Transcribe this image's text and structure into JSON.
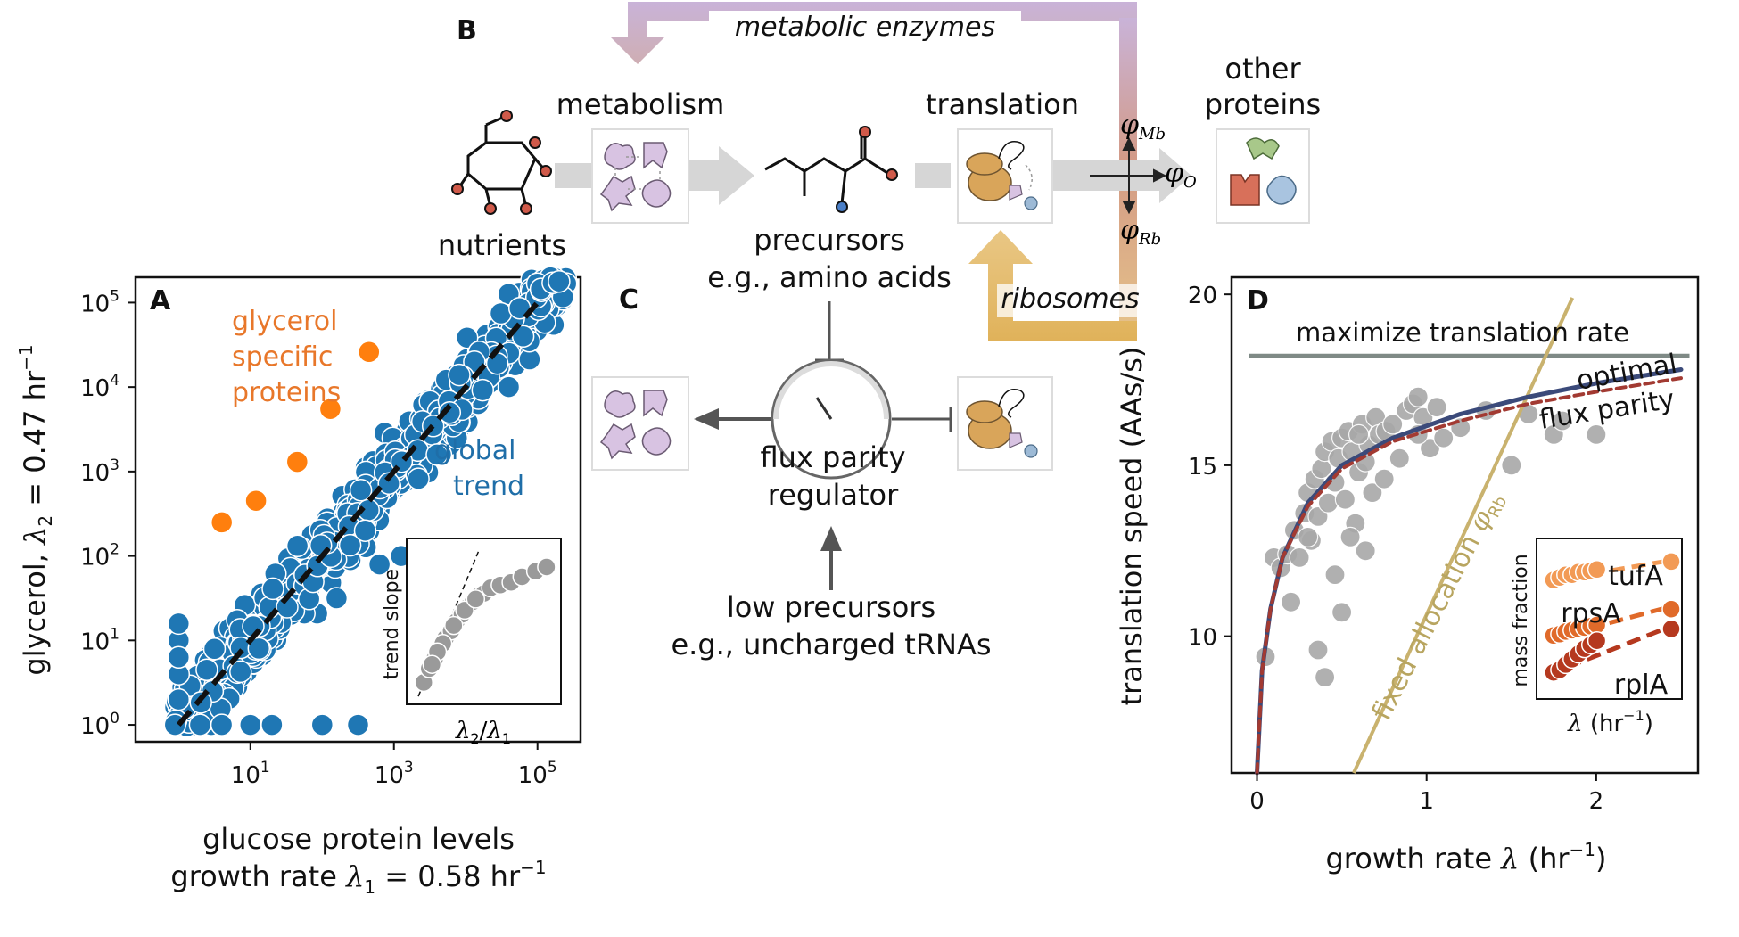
{
  "panels": {
    "A": "A",
    "B": "B",
    "C": "C",
    "D": "D"
  },
  "colors": {
    "global": "#1f77b4",
    "specific": "#ff7f0e",
    "grey_points": "#999999",
    "metab_arrow": "#c9b3d8",
    "ribo_arrow": "#e0b25a",
    "flux_gray": "#bdbdbd",
    "optimal": "#3b4a7a",
    "flux_parity": "#a23a32",
    "fixed": "#c9b26e",
    "max_rate": "#7f8a86",
    "tufA": "#f29a55",
    "rpsA": "#e06a2a",
    "rplA": "#b5391f"
  },
  "panel_b": {
    "top_arrow_label": "metabolic enzymes",
    "nutrients": "nutrients",
    "metabolism": "metabolism",
    "translation": "translation",
    "other_proteins_1": "other",
    "other_proteins_2": "proteins",
    "precursors_1": "precursors",
    "precursors_2": "e.g., amino acids",
    "phi_mb_sym": "φ",
    "phi_mb_sub": "Mb",
    "phi_o_sym": "φ",
    "phi_o_sub": "O",
    "phi_rb_sym": "φ",
    "phi_rb_sub": "Rb",
    "ribosomes": "ribosomes",
    "icons": [
      "glucose-molecule-icon",
      "enzyme-cluster-icon",
      "amino-acid-molecule-icon",
      "ribosome-icon",
      "other-proteins-icon"
    ]
  },
  "panel_c": {
    "regulator_1": "flux parity",
    "regulator_2": "regulator",
    "low_1": "low precursors",
    "low_2": "e.g., uncharged tRNAs",
    "icons": [
      "gauge-icon",
      "enzyme-cluster-icon",
      "ribosome-icon"
    ]
  },
  "chart_data": [
    {
      "id": "A",
      "type": "scatter",
      "xscale": "log",
      "yscale": "log",
      "xlabel_1": "glucose protein levels",
      "xlabel_2_pre": "growth rate ",
      "xlabel_2_lambda": "λ",
      "xlabel_2_sub": "1",
      "xlabel_2_post": " = 0.58 hr",
      "xlabel_2_sup": "−1",
      "ylabel_pre": "glycerol, ",
      "ylabel_lambda": "λ",
      "ylabel_sub": "2",
      "ylabel_post": " = 0.47 hr",
      "ylabel_sup": "−1",
      "xticks": [
        {
          "base": "10",
          "exp": "1"
        },
        {
          "base": "10",
          "exp": "3"
        },
        {
          "base": "10",
          "exp": "5"
        }
      ],
      "yticks": [
        {
          "base": "10",
          "exp": "0"
        },
        {
          "base": "10",
          "exp": "1"
        },
        {
          "base": "10",
          "exp": "2"
        },
        {
          "base": "10",
          "exp": "3"
        },
        {
          "base": "10",
          "exp": "4"
        },
        {
          "base": "10",
          "exp": "5"
        }
      ],
      "xlim_log10": [
        -0.6,
        5.6
      ],
      "ylim_log10": [
        -0.2,
        5.3
      ],
      "specific_label": [
        "glycerol",
        "specific",
        "proteins"
      ],
      "global_label": [
        "global",
        "trend"
      ],
      "specific_points": [
        [
          4,
          250
        ],
        [
          12,
          450
        ],
        [
          45,
          1300
        ],
        [
          130,
          5500
        ],
        [
          450,
          26000
        ]
      ],
      "trend_line": {
        "x": [
          1,
          100000
        ],
        "y": [
          1,
          100000
        ],
        "style": "dashed"
      },
      "inset": {
        "ylabel": "trend slope",
        "xlabel_lambda": "λ",
        "xlabel_sub1": "2",
        "xlabel_slash": "/",
        "xlabel_lambda2": "λ",
        "xlabel_sub2": "1",
        "points": [
          [
            0.06,
            0.08
          ],
          [
            0.1,
            0.18
          ],
          [
            0.14,
            0.25
          ],
          [
            0.18,
            0.33
          ],
          [
            0.22,
            0.4
          ],
          [
            0.26,
            0.45
          ],
          [
            0.3,
            0.52
          ],
          [
            0.34,
            0.57
          ],
          [
            0.38,
            0.62
          ],
          [
            0.42,
            0.66
          ],
          [
            0.46,
            0.7
          ],
          [
            0.5,
            0.72
          ],
          [
            0.55,
            0.76
          ],
          [
            0.62,
            0.78
          ],
          [
            0.7,
            0.8
          ],
          [
            0.78,
            0.84
          ],
          [
            0.88,
            0.88
          ],
          [
            0.96,
            0.91
          ],
          [
            0.2,
            0.36
          ],
          [
            0.28,
            0.49
          ],
          [
            0.36,
            0.6
          ],
          [
            0.44,
            0.68
          ],
          [
            0.16,
            0.3
          ],
          [
            0.12,
            0.21
          ]
        ]
      }
    },
    {
      "id": "D",
      "type": "line",
      "xlabel_pre": "growth rate ",
      "xlabel_lambda": "λ",
      "xlabel_post": " (hr",
      "xlabel_sup": "−1",
      "xlabel_close": ")",
      "ylabel": "translation speed (AAs/s)",
      "xlim": [
        -0.15,
        2.6
      ],
      "ylim": [
        6,
        20.5
      ],
      "xticks": [
        "0",
        "1",
        "2"
      ],
      "yticks": [
        "10",
        "15",
        "20"
      ],
      "series": [
        {
          "name": "maximize translation rate",
          "kind": "hline",
          "y": 18.2
        },
        {
          "name": "optimal",
          "x": [
            0.0,
            0.03,
            0.08,
            0.15,
            0.3,
            0.5,
            0.8,
            1.2,
            1.6,
            2.0,
            2.5
          ],
          "y": [
            6.0,
            9.0,
            10.8,
            12.3,
            13.9,
            15.0,
            15.8,
            16.5,
            17.0,
            17.4,
            17.8
          ]
        },
        {
          "name": "flux parity",
          "x": [
            0.0,
            0.03,
            0.08,
            0.15,
            0.3,
            0.5,
            0.8,
            1.2,
            1.6,
            2.0,
            2.5
          ],
          "y": [
            6.0,
            9.0,
            10.8,
            12.3,
            13.8,
            14.9,
            15.7,
            16.3,
            16.8,
            17.15,
            17.55
          ]
        },
        {
          "name": "fixed allocation",
          "sym": "φ",
          "sub": "Rb",
          "x": [
            0.57,
            1.86
          ],
          "y": [
            6.0,
            19.9
          ]
        }
      ],
      "points": [
        [
          0.05,
          9.4
        ],
        [
          0.1,
          12.3
        ],
        [
          0.14,
          12.0
        ],
        [
          0.18,
          12.4
        ],
        [
          0.2,
          11.0
        ],
        [
          0.22,
          13.1
        ],
        [
          0.25,
          12.3
        ],
        [
          0.28,
          13.6
        ],
        [
          0.3,
          14.2
        ],
        [
          0.32,
          12.8
        ],
        [
          0.34,
          14.6
        ],
        [
          0.36,
          13.5
        ],
        [
          0.38,
          14.9
        ],
        [
          0.4,
          15.4
        ],
        [
          0.42,
          13.9
        ],
        [
          0.44,
          15.7
        ],
        [
          0.46,
          14.5
        ],
        [
          0.48,
          15.2
        ],
        [
          0.5,
          15.8
        ],
        [
          0.52,
          14.0
        ],
        [
          0.54,
          16.0
        ],
        [
          0.56,
          15.4
        ],
        [
          0.58,
          13.3
        ],
        [
          0.6,
          14.8
        ],
        [
          0.62,
          16.2
        ],
        [
          0.64,
          15.1
        ],
        [
          0.66,
          15.6
        ],
        [
          0.68,
          14.2
        ],
        [
          0.7,
          16.4
        ],
        [
          0.72,
          15.9
        ],
        [
          0.76,
          16.0
        ],
        [
          0.8,
          16.2
        ],
        [
          0.84,
          15.2
        ],
        [
          0.88,
          16.6
        ],
        [
          0.92,
          16.8
        ],
        [
          0.95,
          17.0
        ],
        [
          0.98,
          16.4
        ],
        [
          1.02,
          15.5
        ],
        [
          1.06,
          16.7
        ],
        [
          1.1,
          15.8
        ],
        [
          1.2,
          16.1
        ],
        [
          1.35,
          16.6
        ],
        [
          1.5,
          15.0
        ],
        [
          1.6,
          16.5
        ],
        [
          1.75,
          15.9
        ],
        [
          1.8,
          16.3
        ],
        [
          2.0,
          15.9
        ],
        [
          0.46,
          11.8
        ],
        [
          0.5,
          10.7
        ],
        [
          0.36,
          9.6
        ],
        [
          0.4,
          8.8
        ],
        [
          0.55,
          12.9
        ],
        [
          0.64,
          12.5
        ],
        [
          0.3,
          12.9
        ],
        [
          0.6,
          15.9
        ],
        [
          0.75,
          14.6
        ],
        [
          0.95,
          15.9
        ]
      ],
      "labels": {
        "max": "maximize translation rate",
        "optimal": "optimal",
        "flux": "flux parity",
        "fixed": "fixed allocation "
      },
      "inset": {
        "ylabel": "mass fraction",
        "xlabel_lambda": "λ",
        "xlabel_post": " (hr",
        "xlabel_sup": "−1",
        "xlabel_close": ")",
        "series": [
          {
            "name": "tufA",
            "color": "#f29a55",
            "x": [
              0.05,
              0.1,
              0.15,
              0.2,
              0.25,
              0.3,
              0.35,
              0.4,
              1.0
            ],
            "y": [
              0.82,
              0.84,
              0.86,
              0.86,
              0.88,
              0.88,
              0.89,
              0.9,
              0.96
            ],
            "fit": [
              [
                0.0,
                0.81
              ],
              [
                1.0,
                0.97
              ]
            ]
          },
          {
            "name": "rpsA",
            "color": "#e06a2a",
            "x": [
              0.05,
              0.1,
              0.15,
              0.2,
              0.25,
              0.3,
              0.35,
              0.4,
              1.0
            ],
            "y": [
              0.4,
              0.41,
              0.43,
              0.44,
              0.45,
              0.46,
              0.47,
              0.48,
              0.6
            ],
            "fit": [
              [
                0.0,
                0.37
              ],
              [
                1.0,
                0.62
              ]
            ]
          },
          {
            "name": "rplA",
            "color": "#b5391f",
            "x": [
              0.05,
              0.1,
              0.15,
              0.2,
              0.25,
              0.3,
              0.35,
              0.4,
              1.0
            ],
            "y": [
              0.12,
              0.14,
              0.18,
              0.22,
              0.26,
              0.3,
              0.33,
              0.36,
              0.45
            ],
            "fit": [
              [
                0.0,
                0.1
              ],
              [
                1.0,
                0.47
              ]
            ]
          }
        ]
      }
    }
  ]
}
